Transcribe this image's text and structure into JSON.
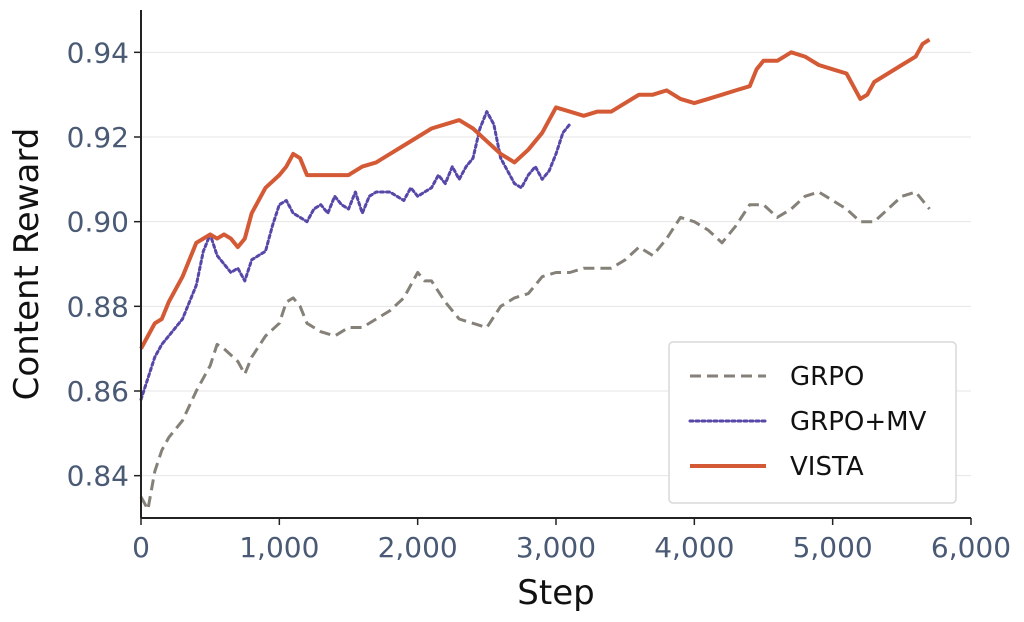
{
  "chart_data": {
    "type": "line",
    "xlabel": "Step",
    "ylabel": "Content Reward",
    "xlim": [
      0,
      6000
    ],
    "ylim": [
      0.83,
      0.95
    ],
    "x_ticks": [
      0,
      1000,
      2000,
      3000,
      4000,
      5000,
      6000
    ],
    "x_tick_labels": [
      "0",
      "1,000",
      "2,000",
      "3,000",
      "4,000",
      "5,000",
      "6,000"
    ],
    "y_ticks": [
      0.84,
      0.86,
      0.88,
      0.9,
      0.92,
      0.94
    ],
    "y_tick_labels": [
      "0.84",
      "0.86",
      "0.88",
      "0.90",
      "0.92",
      "0.94"
    ],
    "grid": "horizontal",
    "legend_position": "bottom-right",
    "series": [
      {
        "name": "GRPO",
        "color": "#858178",
        "style": "dashed",
        "points": [
          [
            0,
            0.835
          ],
          [
            50,
            0.832
          ],
          [
            100,
            0.841
          ],
          [
            150,
            0.846
          ],
          [
            200,
            0.849
          ],
          [
            300,
            0.853
          ],
          [
            400,
            0.86
          ],
          [
            500,
            0.866
          ],
          [
            550,
            0.871
          ],
          [
            600,
            0.87
          ],
          [
            700,
            0.867
          ],
          [
            750,
            0.864
          ],
          [
            800,
            0.868
          ],
          [
            900,
            0.873
          ],
          [
            1000,
            0.876
          ],
          [
            1050,
            0.881
          ],
          [
            1100,
            0.882
          ],
          [
            1150,
            0.88
          ],
          [
            1200,
            0.876
          ],
          [
            1300,
            0.874
          ],
          [
            1400,
            0.873
          ],
          [
            1500,
            0.875
          ],
          [
            1600,
            0.875
          ],
          [
            1700,
            0.877
          ],
          [
            1800,
            0.879
          ],
          [
            1900,
            0.882
          ],
          [
            2000,
            0.888
          ],
          [
            2050,
            0.886
          ],
          [
            2100,
            0.886
          ],
          [
            2200,
            0.881
          ],
          [
            2300,
            0.877
          ],
          [
            2400,
            0.876
          ],
          [
            2500,
            0.875
          ],
          [
            2600,
            0.88
          ],
          [
            2700,
            0.882
          ],
          [
            2800,
            0.883
          ],
          [
            2900,
            0.887
          ],
          [
            3000,
            0.888
          ],
          [
            3100,
            0.888
          ],
          [
            3200,
            0.889
          ],
          [
            3300,
            0.889
          ],
          [
            3400,
            0.889
          ],
          [
            3500,
            0.891
          ],
          [
            3600,
            0.894
          ],
          [
            3700,
            0.892
          ],
          [
            3800,
            0.896
          ],
          [
            3900,
            0.901
          ],
          [
            4000,
            0.9
          ],
          [
            4100,
            0.898
          ],
          [
            4200,
            0.895
          ],
          [
            4300,
            0.899
          ],
          [
            4400,
            0.904
          ],
          [
            4500,
            0.904
          ],
          [
            4600,
            0.901
          ],
          [
            4700,
            0.903
          ],
          [
            4800,
            0.906
          ],
          [
            4900,
            0.907
          ],
          [
            5000,
            0.905
          ],
          [
            5100,
            0.903
          ],
          [
            5200,
            0.9
          ],
          [
            5300,
            0.9
          ],
          [
            5400,
            0.903
          ],
          [
            5500,
            0.906
          ],
          [
            5600,
            0.907
          ],
          [
            5700,
            0.903
          ]
        ]
      },
      {
        "name": "GRPO+MV",
        "color": "#5548a8",
        "style": "dotted",
        "points": [
          [
            0,
            0.858
          ],
          [
            50,
            0.863
          ],
          [
            100,
            0.868
          ],
          [
            150,
            0.871
          ],
          [
            200,
            0.873
          ],
          [
            300,
            0.877
          ],
          [
            400,
            0.885
          ],
          [
            450,
            0.893
          ],
          [
            500,
            0.897
          ],
          [
            550,
            0.892
          ],
          [
            600,
            0.89
          ],
          [
            650,
            0.888
          ],
          [
            700,
            0.889
          ],
          [
            750,
            0.886
          ],
          [
            800,
            0.891
          ],
          [
            850,
            0.892
          ],
          [
            900,
            0.893
          ],
          [
            950,
            0.899
          ],
          [
            1000,
            0.904
          ],
          [
            1050,
            0.905
          ],
          [
            1100,
            0.902
          ],
          [
            1150,
            0.901
          ],
          [
            1200,
            0.9
          ],
          [
            1250,
            0.903
          ],
          [
            1300,
            0.904
          ],
          [
            1350,
            0.902
          ],
          [
            1400,
            0.906
          ],
          [
            1450,
            0.904
          ],
          [
            1500,
            0.903
          ],
          [
            1550,
            0.907
          ],
          [
            1600,
            0.902
          ],
          [
            1650,
            0.906
          ],
          [
            1700,
            0.907
          ],
          [
            1800,
            0.907
          ],
          [
            1900,
            0.905
          ],
          [
            1950,
            0.908
          ],
          [
            2000,
            0.906
          ],
          [
            2050,
            0.907
          ],
          [
            2100,
            0.908
          ],
          [
            2150,
            0.911
          ],
          [
            2200,
            0.909
          ],
          [
            2250,
            0.913
          ],
          [
            2300,
            0.91
          ],
          [
            2350,
            0.913
          ],
          [
            2400,
            0.915
          ],
          [
            2450,
            0.922
          ],
          [
            2500,
            0.926
          ],
          [
            2550,
            0.923
          ],
          [
            2600,
            0.915
          ],
          [
            2650,
            0.912
          ],
          [
            2700,
            0.909
          ],
          [
            2750,
            0.908
          ],
          [
            2800,
            0.911
          ],
          [
            2850,
            0.913
          ],
          [
            2900,
            0.91
          ],
          [
            2950,
            0.912
          ],
          [
            3000,
            0.916
          ],
          [
            3050,
            0.921
          ],
          [
            3100,
            0.923
          ]
        ]
      },
      {
        "name": "VISTA",
        "color": "#d45a35",
        "style": "solid",
        "points": [
          [
            0,
            0.87
          ],
          [
            50,
            0.873
          ],
          [
            100,
            0.876
          ],
          [
            150,
            0.877
          ],
          [
            200,
            0.881
          ],
          [
            300,
            0.887
          ],
          [
            400,
            0.895
          ],
          [
            450,
            0.896
          ],
          [
            500,
            0.897
          ],
          [
            550,
            0.896
          ],
          [
            600,
            0.897
          ],
          [
            650,
            0.896
          ],
          [
            700,
            0.894
          ],
          [
            750,
            0.896
          ],
          [
            800,
            0.902
          ],
          [
            900,
            0.908
          ],
          [
            1000,
            0.911
          ],
          [
            1050,
            0.913
          ],
          [
            1100,
            0.916
          ],
          [
            1150,
            0.915
          ],
          [
            1200,
            0.911
          ],
          [
            1300,
            0.911
          ],
          [
            1400,
            0.911
          ],
          [
            1500,
            0.911
          ],
          [
            1600,
            0.913
          ],
          [
            1700,
            0.914
          ],
          [
            1800,
            0.916
          ],
          [
            1900,
            0.918
          ],
          [
            2000,
            0.92
          ],
          [
            2100,
            0.922
          ],
          [
            2200,
            0.923
          ],
          [
            2300,
            0.924
          ],
          [
            2400,
            0.922
          ],
          [
            2500,
            0.919
          ],
          [
            2600,
            0.916
          ],
          [
            2700,
            0.914
          ],
          [
            2800,
            0.917
          ],
          [
            2900,
            0.921
          ],
          [
            3000,
            0.927
          ],
          [
            3100,
            0.926
          ],
          [
            3200,
            0.925
          ],
          [
            3300,
            0.926
          ],
          [
            3400,
            0.926
          ],
          [
            3500,
            0.928
          ],
          [
            3600,
            0.93
          ],
          [
            3700,
            0.93
          ],
          [
            3800,
            0.931
          ],
          [
            3900,
            0.929
          ],
          [
            4000,
            0.928
          ],
          [
            4100,
            0.929
          ],
          [
            4200,
            0.93
          ],
          [
            4300,
            0.931
          ],
          [
            4400,
            0.932
          ],
          [
            4450,
            0.936
          ],
          [
            4500,
            0.938
          ],
          [
            4600,
            0.938
          ],
          [
            4700,
            0.94
          ],
          [
            4800,
            0.939
          ],
          [
            4900,
            0.937
          ],
          [
            5000,
            0.936
          ],
          [
            5100,
            0.935
          ],
          [
            5150,
            0.932
          ],
          [
            5200,
            0.929
          ],
          [
            5250,
            0.93
          ],
          [
            5300,
            0.933
          ],
          [
            5400,
            0.935
          ],
          [
            5500,
            0.937
          ],
          [
            5600,
            0.939
          ],
          [
            5650,
            0.942
          ],
          [
            5700,
            0.943
          ]
        ]
      }
    ]
  }
}
